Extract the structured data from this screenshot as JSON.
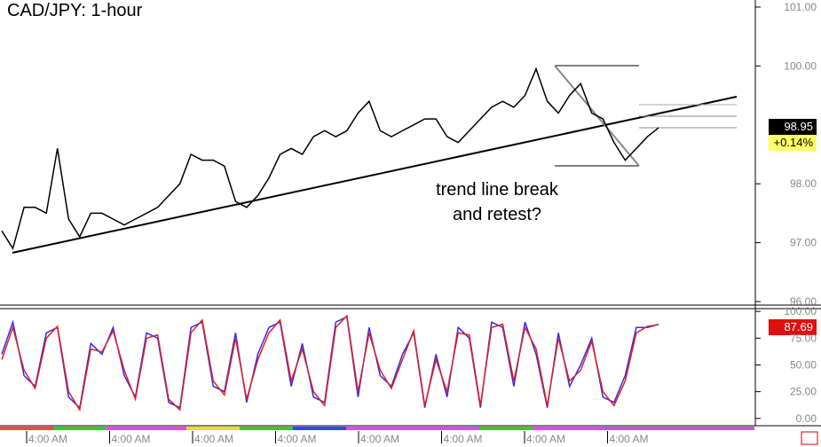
{
  "chart_data": {
    "type": "line",
    "title": "CAD/JPY: 1-hour",
    "annotation": [
      "trend line break",
      "and retest?"
    ],
    "price": {
      "color": "#000000",
      "values": [
        97.2,
        96.9,
        97.6,
        97.6,
        97.5,
        98.6,
        97.4,
        97.1,
        97.5,
        97.5,
        97.4,
        97.3,
        97.4,
        97.5,
        97.6,
        97.8,
        98.0,
        98.5,
        98.4,
        98.4,
        98.3,
        97.7,
        97.6,
        97.8,
        98.1,
        98.5,
        98.6,
        98.5,
        98.8,
        98.9,
        98.8,
        98.9,
        99.2,
        99.4,
        98.9,
        98.8,
        98.9,
        99.0,
        99.1,
        99.1,
        98.8,
        98.7,
        98.9,
        99.1,
        99.3,
        99.4,
        99.3,
        99.5,
        99.95,
        99.4,
        99.2,
        99.5,
        99.7,
        99.2,
        99.1,
        98.7,
        98.4,
        98.6,
        98.8,
        98.95
      ],
      "ylim": [
        95.94,
        101.12
      ],
      "yticks": [
        {
          "value": 101,
          "label": "101.00"
        },
        {
          "value": 100,
          "label": "100.00"
        },
        {
          "value": 98,
          "label": "98.00"
        },
        {
          "value": 97,
          "label": "97.00"
        },
        {
          "value": 96,
          "label": "96.00"
        }
      ],
      "last": 98.95,
      "change": "+0.14%"
    },
    "stochastic": {
      "series": [
        {
          "color": "#2b2bff",
          "values": [
            60,
            90,
            40,
            30,
            80,
            85,
            20,
            10,
            70,
            60,
            85,
            40,
            20,
            80,
            75,
            15,
            10,
            85,
            90,
            30,
            25,
            80,
            15,
            60,
            85,
            90,
            30,
            70,
            20,
            15,
            90,
            95,
            20,
            85,
            40,
            30,
            60,
            80,
            10,
            60,
            20,
            85,
            75,
            10,
            90,
            85,
            30,
            90,
            60,
            10,
            80,
            30,
            50,
            75,
            20,
            15,
            40,
            85,
            85,
            88
          ]
        },
        {
          "color": "#e02020",
          "values": [
            55,
            85,
            45,
            28,
            75,
            86,
            25,
            8,
            65,
            62,
            82,
            45,
            18,
            75,
            78,
            18,
            8,
            80,
            92,
            35,
            22,
            75,
            18,
            55,
            80,
            92,
            35,
            65,
            25,
            12,
            85,
            96,
            25,
            80,
            45,
            28,
            55,
            82,
            12,
            55,
            25,
            80,
            78,
            12,
            85,
            88,
            35,
            85,
            65,
            12,
            75,
            35,
            45,
            72,
            25,
            12,
            35,
            80,
            86,
            87.69
          ]
        }
      ],
      "ylim": [
        -6.8,
        102.6
      ],
      "yticks": [
        {
          "value": 100,
          "label": "100.00"
        },
        {
          "value": 75,
          "label": "75.00"
        },
        {
          "value": 50,
          "label": "50.00"
        },
        {
          "value": 25,
          "label": "25.00"
        },
        {
          "value": 0,
          "label": "0.00"
        }
      ],
      "last": 87.69
    },
    "xlabels": [
      "4:00 AM",
      "4:00 AM",
      "4:00 AM",
      "4:00 AM",
      "4:00 AM",
      "4:00 AM",
      "4:00 AM",
      "4:00 AM"
    ]
  }
}
